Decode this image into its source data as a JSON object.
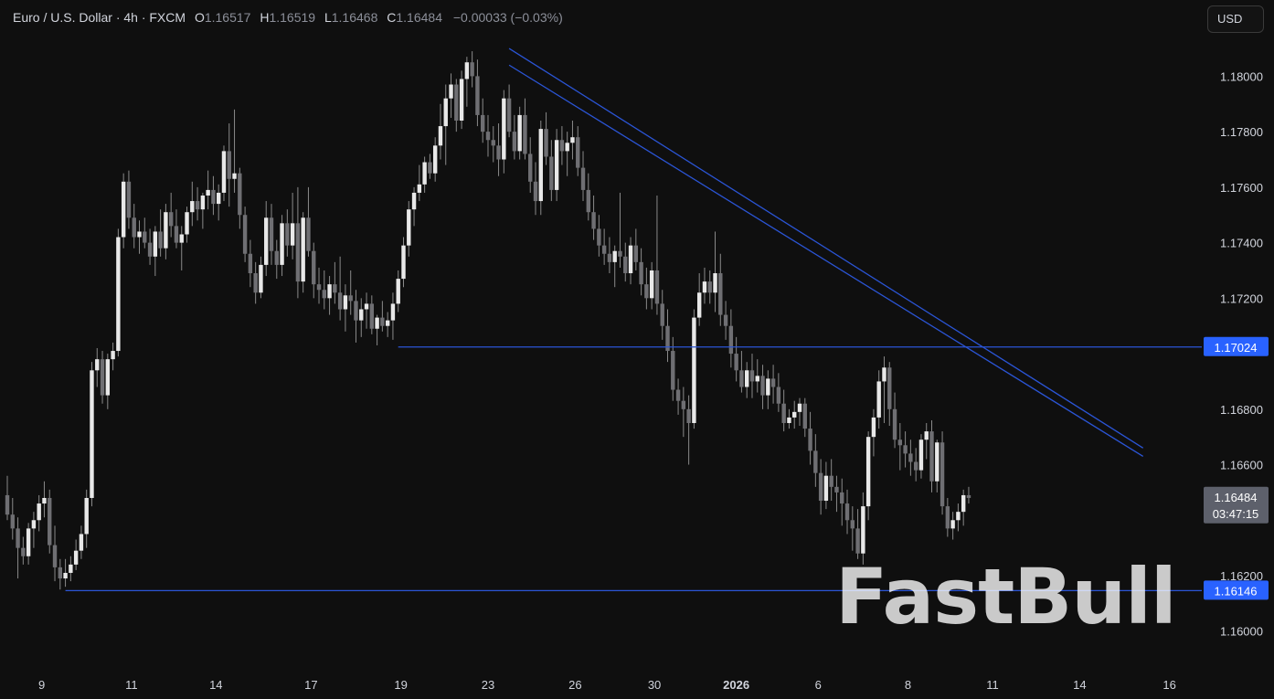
{
  "header": {
    "symbol": "Euro / U.S. Dollar · 4h · FXCM",
    "o_label": "O",
    "o_value": "1.16517",
    "h_label": "H",
    "h_value": "1.16519",
    "l_label": "L",
    "l_value": "1.16468",
    "c_label": "C",
    "c_value": "1.16484",
    "change": "−0.00033 (−0.03%)"
  },
  "currency_button": "USD",
  "watermark": "FastBull",
  "colors": {
    "background": "#0f0f0f",
    "candle": "#e8e8e8",
    "candle_down": "#6f6f73",
    "wick": "#8a8a8a",
    "line": "#2b55d6",
    "label_blue": "#2962ff",
    "label_grey": "#5d606b",
    "axis_text": "#d1d4dc"
  },
  "chart_data": {
    "type": "candlestick",
    "symbol": "Euro / U.S. Dollar",
    "timeframe": "4h",
    "source": "FXCM",
    "y_range": [
      1.1593,
      1.1811
    ],
    "y_ticks": [
      "1.16000",
      "1.16200",
      "1.16600",
      "1.16800",
      "1.17200",
      "1.17400",
      "1.17600",
      "1.17800",
      "1.18000"
    ],
    "x_ticks": [
      "9",
      "11",
      "14",
      "17",
      "19",
      "23",
      "26",
      "30",
      "2026",
      "6",
      "8",
      "11",
      "14",
      "16"
    ],
    "price_labels": [
      {
        "text": "1.17024",
        "value": 1.17024,
        "style": "blue"
      },
      {
        "text": "1.16146",
        "value": 1.16146,
        "style": "blue"
      },
      {
        "text": "1.16484",
        "text2": "03:47:15",
        "value": 1.16484,
        "style": "grey"
      }
    ],
    "horizontal_lines": [
      {
        "name": "resistance",
        "value": 1.17024,
        "from_index": 74
      },
      {
        "name": "support",
        "value": 1.16146,
        "from_index": 11
      }
    ],
    "trendlines": [
      {
        "from": [
          95,
          1.181
        ],
        "to": [
          215,
          1.1666
        ]
      },
      {
        "from": [
          95,
          1.1804
        ],
        "to": [
          215,
          1.1663
        ]
      }
    ],
    "candles": [
      [
        1.1649,
        1.1656,
        1.164,
        1.1642
      ],
      [
        1.1642,
        1.1648,
        1.1633,
        1.1637
      ],
      [
        1.1637,
        1.1641,
        1.1619,
        1.163
      ],
      [
        1.163,
        1.1634,
        1.1624,
        1.1627
      ],
      [
        1.1627,
        1.1639,
        1.1624,
        1.1637
      ],
      [
        1.1637,
        1.1643,
        1.163,
        1.164
      ],
      [
        1.164,
        1.1649,
        1.1636,
        1.1646
      ],
      [
        1.1646,
        1.1654,
        1.1641,
        1.1648
      ],
      [
        1.1648,
        1.1651,
        1.1628,
        1.1631
      ],
      [
        1.1631,
        1.1638,
        1.1618,
        1.1623
      ],
      [
        1.1623,
        1.1626,
        1.1615,
        1.1619
      ],
      [
        1.1619,
        1.1626,
        1.1616,
        1.1621
      ],
      [
        1.1621,
        1.1627,
        1.1618,
        1.1624
      ],
      [
        1.1624,
        1.1633,
        1.1622,
        1.1629
      ],
      [
        1.1629,
        1.1638,
        1.1626,
        1.1635
      ],
      [
        1.1635,
        1.1651,
        1.163,
        1.1648
      ],
      [
        1.1648,
        1.1697,
        1.1645,
        1.1694
      ],
      [
        1.1694,
        1.1702,
        1.1688,
        1.1698
      ],
      [
        1.1698,
        1.1701,
        1.1682,
        1.1685
      ],
      [
        1.1685,
        1.17,
        1.168,
        1.1698
      ],
      [
        1.1698,
        1.1704,
        1.1694,
        1.1701
      ],
      [
        1.1701,
        1.1745,
        1.1699,
        1.1742
      ],
      [
        1.1742,
        1.1765,
        1.1738,
        1.1762
      ],
      [
        1.1762,
        1.1766,
        1.1745,
        1.1749
      ],
      [
        1.1749,
        1.1754,
        1.1738,
        1.1742
      ],
      [
        1.1742,
        1.1748,
        1.1736,
        1.1744
      ],
      [
        1.1744,
        1.1749,
        1.1738,
        1.174
      ],
      [
        1.174,
        1.1745,
        1.1732,
        1.1735
      ],
      [
        1.1735,
        1.1746,
        1.1728,
        1.1744
      ],
      [
        1.1744,
        1.1752,
        1.1735,
        1.1738
      ],
      [
        1.1738,
        1.1754,
        1.1734,
        1.1751
      ],
      [
        1.1751,
        1.1758,
        1.1742,
        1.1746
      ],
      [
        1.1746,
        1.1752,
        1.1738,
        1.174
      ],
      [
        1.174,
        1.1746,
        1.173,
        1.1743
      ],
      [
        1.1743,
        1.1753,
        1.174,
        1.1751
      ],
      [
        1.1751,
        1.1762,
        1.1746,
        1.1755
      ],
      [
        1.1755,
        1.176,
        1.1748,
        1.1752
      ],
      [
        1.1752,
        1.1758,
        1.1745,
        1.1757
      ],
      [
        1.1757,
        1.1766,
        1.1752,
        1.1759
      ],
      [
        1.1759,
        1.1764,
        1.175,
        1.1754
      ],
      [
        1.1754,
        1.1761,
        1.1748,
        1.1758
      ],
      [
        1.1758,
        1.1775,
        1.1755,
        1.1773
      ],
      [
        1.1773,
        1.1783,
        1.1753,
        1.1763
      ],
      [
        1.1763,
        1.1788,
        1.1758,
        1.1765
      ],
      [
        1.1765,
        1.1767,
        1.1745,
        1.175
      ],
      [
        1.175,
        1.1753,
        1.1733,
        1.1736
      ],
      [
        1.1736,
        1.1741,
        1.1724,
        1.1729
      ],
      [
        1.1729,
        1.1733,
        1.1718,
        1.1722
      ],
      [
        1.1722,
        1.1735,
        1.172,
        1.1732
      ],
      [
        1.1732,
        1.1755,
        1.1728,
        1.1749
      ],
      [
        1.1749,
        1.1754,
        1.1732,
        1.1737
      ],
      [
        1.1737,
        1.1741,
        1.1727,
        1.1732
      ],
      [
        1.1732,
        1.175,
        1.1728,
        1.1747
      ],
      [
        1.1747,
        1.1752,
        1.1735,
        1.1739
      ],
      [
        1.1739,
        1.1758,
        1.1734,
        1.1747
      ],
      [
        1.1747,
        1.176,
        1.172,
        1.1726
      ],
      [
        1.1726,
        1.1751,
        1.1722,
        1.1749
      ],
      [
        1.1749,
        1.176,
        1.1735,
        1.1737
      ],
      [
        1.1737,
        1.174,
        1.172,
        1.1725
      ],
      [
        1.1725,
        1.1731,
        1.1718,
        1.1723
      ],
      [
        1.1723,
        1.173,
        1.1716,
        1.172
      ],
      [
        1.172,
        1.1728,
        1.1714,
        1.1725
      ],
      [
        1.1725,
        1.1733,
        1.1718,
        1.1722
      ],
      [
        1.1722,
        1.1735,
        1.1712,
        1.1716
      ],
      [
        1.1716,
        1.1725,
        1.1708,
        1.1721
      ],
      [
        1.1721,
        1.173,
        1.1714,
        1.1719
      ],
      [
        1.1719,
        1.1723,
        1.1704,
        1.1712
      ],
      [
        1.1712,
        1.172,
        1.1706,
        1.1716
      ],
      [
        1.1716,
        1.1722,
        1.1709,
        1.1718
      ],
      [
        1.1718,
        1.1721,
        1.1707,
        1.1709
      ],
      [
        1.1709,
        1.1714,
        1.1703,
        1.1713
      ],
      [
        1.1713,
        1.1719,
        1.1708,
        1.171
      ],
      [
        1.171,
        1.1715,
        1.1706,
        1.1712
      ],
      [
        1.1712,
        1.1722,
        1.1705,
        1.1718
      ],
      [
        1.1718,
        1.173,
        1.1715,
        1.1727
      ],
      [
        1.1727,
        1.1742,
        1.1724,
        1.1739
      ],
      [
        1.1739,
        1.1755,
        1.1735,
        1.1752
      ],
      [
        1.1752,
        1.176,
        1.1746,
        1.1758
      ],
      [
        1.1758,
        1.1768,
        1.1755,
        1.1761
      ],
      [
        1.1761,
        1.1771,
        1.1758,
        1.1769
      ],
      [
        1.1769,
        1.1772,
        1.1763,
        1.1765
      ],
      [
        1.1765,
        1.1778,
        1.1762,
        1.1775
      ],
      [
        1.1775,
        1.179,
        1.177,
        1.1782
      ],
      [
        1.1782,
        1.1797,
        1.1768,
        1.1792
      ],
      [
        1.1792,
        1.1801,
        1.1785,
        1.1797
      ],
      [
        1.1797,
        1.1799,
        1.178,
        1.1784
      ],
      [
        1.1784,
        1.1802,
        1.1781,
        1.1799
      ],
      [
        1.1799,
        1.1807,
        1.1789,
        1.1805
      ],
      [
        1.1805,
        1.1809,
        1.1796,
        1.18
      ],
      [
        1.18,
        1.1806,
        1.1782,
        1.1786
      ],
      [
        1.1786,
        1.1792,
        1.1776,
        1.178
      ],
      [
        1.178,
        1.1786,
        1.1771,
        1.1777
      ],
      [
        1.1777,
        1.1782,
        1.1769,
        1.1775
      ],
      [
        1.1775,
        1.1783,
        1.1764,
        1.177
      ],
      [
        1.177,
        1.1795,
        1.1765,
        1.1792
      ],
      [
        1.1792,
        1.1797,
        1.1778,
        1.178
      ],
      [
        1.178,
        1.1786,
        1.177,
        1.1773
      ],
      [
        1.1773,
        1.1789,
        1.177,
        1.1786
      ],
      [
        1.1786,
        1.1792,
        1.177,
        1.1772
      ],
      [
        1.1772,
        1.1778,
        1.1758,
        1.1762
      ],
      [
        1.1762,
        1.1769,
        1.175,
        1.1755
      ],
      [
        1.1755,
        1.1784,
        1.175,
        1.1781
      ],
      [
        1.1781,
        1.1787,
        1.1768,
        1.1771
      ],
      [
        1.1771,
        1.1777,
        1.1755,
        1.1759
      ],
      [
        1.1759,
        1.1781,
        1.1755,
        1.1777
      ],
      [
        1.1777,
        1.1782,
        1.1768,
        1.1773
      ],
      [
        1.1773,
        1.178,
        1.1764,
        1.1776
      ],
      [
        1.1776,
        1.1784,
        1.177,
        1.1778
      ],
      [
        1.1778,
        1.1782,
        1.1764,
        1.1767
      ],
      [
        1.1767,
        1.1773,
        1.1755,
        1.1759
      ],
      [
        1.1759,
        1.1765,
        1.1748,
        1.1751
      ],
      [
        1.1751,
        1.1757,
        1.1741,
        1.1745
      ],
      [
        1.1745,
        1.175,
        1.1735,
        1.1739
      ],
      [
        1.1739,
        1.1745,
        1.1732,
        1.1736
      ],
      [
        1.1736,
        1.1742,
        1.1729,
        1.1733
      ],
      [
        1.1733,
        1.1739,
        1.1724,
        1.1737
      ],
      [
        1.1737,
        1.1758,
        1.1731,
        1.1735
      ],
      [
        1.1735,
        1.174,
        1.1726,
        1.1729
      ],
      [
        1.1729,
        1.1742,
        1.1725,
        1.1739
      ],
      [
        1.1739,
        1.1745,
        1.173,
        1.1733
      ],
      [
        1.1733,
        1.1738,
        1.1721,
        1.1725
      ],
      [
        1.1725,
        1.1731,
        1.1716,
        1.172
      ],
      [
        1.172,
        1.1733,
        1.1716,
        1.173
      ],
      [
        1.173,
        1.1757,
        1.1714,
        1.1718
      ],
      [
        1.1718,
        1.1723,
        1.1705,
        1.171
      ],
      [
        1.171,
        1.1716,
        1.1697,
        1.1701
      ],
      [
        1.1701,
        1.1706,
        1.1683,
        1.1687
      ],
      [
        1.1687,
        1.1691,
        1.1678,
        1.1683
      ],
      [
        1.1683,
        1.1688,
        1.167,
        1.168
      ],
      [
        1.168,
        1.1685,
        1.166,
        1.1675
      ],
      [
        1.1675,
        1.1716,
        1.1673,
        1.1713
      ],
      [
        1.1713,
        1.1729,
        1.171,
        1.1722
      ],
      [
        1.1722,
        1.1731,
        1.1718,
        1.1726
      ],
      [
        1.1726,
        1.173,
        1.1718,
        1.1722
      ],
      [
        1.1722,
        1.1744,
        1.1715,
        1.1729
      ],
      [
        1.1729,
        1.1736,
        1.171,
        1.1714
      ],
      [
        1.1714,
        1.1719,
        1.1705,
        1.171
      ],
      [
        1.171,
        1.1716,
        1.1695,
        1.17
      ],
      [
        1.17,
        1.1706,
        1.169,
        1.1694
      ],
      [
        1.1694,
        1.1701,
        1.1686,
        1.1688
      ],
      [
        1.1688,
        1.1697,
        1.1684,
        1.1694
      ],
      [
        1.1694,
        1.17,
        1.1684,
        1.169
      ],
      [
        1.169,
        1.1698,
        1.1686,
        1.1692
      ],
      [
        1.1692,
        1.1696,
        1.168,
        1.1685
      ],
      [
        1.1685,
        1.1694,
        1.168,
        1.1691
      ],
      [
        1.1691,
        1.1696,
        1.1682,
        1.1688
      ],
      [
        1.1688,
        1.1693,
        1.1679,
        1.1682
      ],
      [
        1.1682,
        1.1687,
        1.1672,
        1.1675
      ],
      [
        1.1675,
        1.168,
        1.1673,
        1.1677
      ],
      [
        1.1677,
        1.1683,
        1.1673,
        1.1679
      ],
      [
        1.1679,
        1.1684,
        1.1674,
        1.1682
      ],
      [
        1.1682,
        1.1684,
        1.167,
        1.1673
      ],
      [
        1.1673,
        1.1679,
        1.166,
        1.1665
      ],
      [
        1.1665,
        1.1671,
        1.1652,
        1.1657
      ],
      [
        1.1657,
        1.1662,
        1.1642,
        1.1647
      ],
      [
        1.1647,
        1.1661,
        1.1644,
        1.1656
      ],
      [
        1.1656,
        1.1662,
        1.1647,
        1.1652
      ],
      [
        1.1652,
        1.1656,
        1.1643,
        1.165
      ],
      [
        1.165,
        1.1655,
        1.1638,
        1.1646
      ],
      [
        1.1646,
        1.1651,
        1.1635,
        1.164
      ],
      [
        1.164,
        1.1645,
        1.1629,
        1.1637
      ],
      [
        1.1637,
        1.1644,
        1.1626,
        1.1628
      ],
      [
        1.1628,
        1.165,
        1.1624,
        1.1645
      ],
      [
        1.1645,
        1.1672,
        1.164,
        1.167
      ],
      [
        1.167,
        1.168,
        1.1663,
        1.1677
      ],
      [
        1.1677,
        1.1694,
        1.1673,
        1.169
      ],
      [
        1.169,
        1.1699,
        1.1675,
        1.1695
      ],
      [
        1.1695,
        1.1697,
        1.1674,
        1.168
      ],
      [
        1.168,
        1.1686,
        1.1666,
        1.1669
      ],
      [
        1.1669,
        1.1675,
        1.1658,
        1.1667
      ],
      [
        1.1667,
        1.1672,
        1.1659,
        1.1664
      ],
      [
        1.1664,
        1.1669,
        1.1656,
        1.1661
      ],
      [
        1.1661,
        1.1666,
        1.1654,
        1.1658
      ],
      [
        1.1658,
        1.1671,
        1.1655,
        1.1669
      ],
      [
        1.1669,
        1.1675,
        1.1662,
        1.1672
      ],
      [
        1.1672,
        1.1676,
        1.165,
        1.1654
      ],
      [
        1.1654,
        1.1669,
        1.165,
        1.1668
      ],
      [
        1.1668,
        1.1672,
        1.1642,
        1.1645
      ],
      [
        1.1645,
        1.1648,
        1.1634,
        1.1637
      ],
      [
        1.1637,
        1.1643,
        1.1633,
        1.164
      ],
      [
        1.164,
        1.1646,
        1.1636,
        1.1643
      ],
      [
        1.1643,
        1.1651,
        1.1638,
        1.1649
      ],
      [
        1.1649,
        1.1652,
        1.1646,
        1.1648
      ]
    ]
  }
}
